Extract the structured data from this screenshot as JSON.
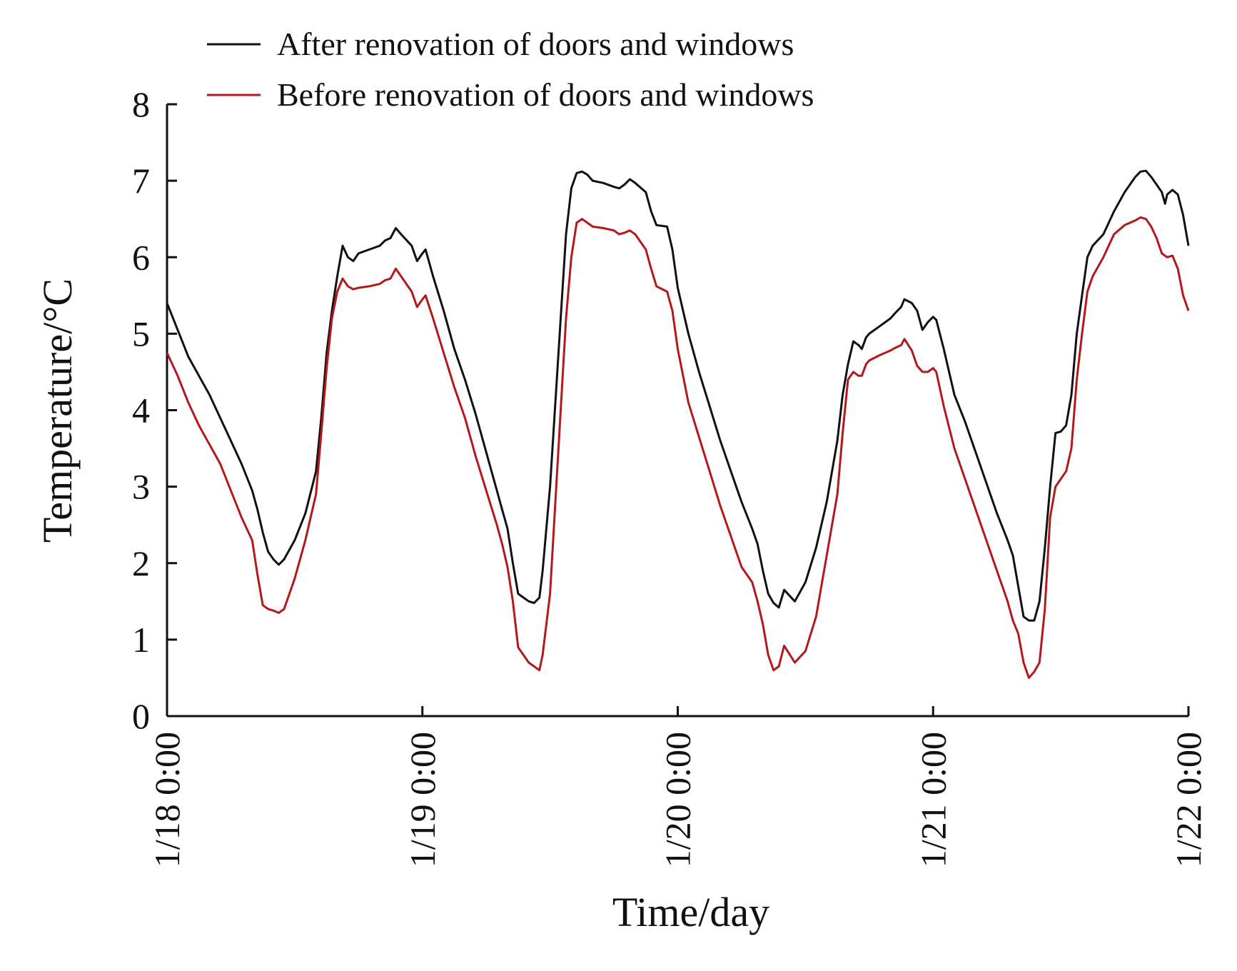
{
  "chart_data": {
    "type": "line",
    "title": "",
    "xlabel": "Time/day",
    "ylabel": "Temperature/°C",
    "ylim": [
      0,
      8
    ],
    "yticks": [
      0,
      1,
      2,
      3,
      4,
      5,
      6,
      7,
      8
    ],
    "ytick_labels": [
      "0",
      "1",
      "2",
      "3",
      "4",
      "5",
      "6",
      "7",
      "8"
    ],
    "xlim": [
      0,
      96
    ],
    "xticks": [
      0,
      24,
      48,
      72,
      96
    ],
    "xtick_labels": [
      "1/18 0:00",
      "1/19 0:00",
      "1/20 0:00",
      "1/21 0:00",
      "1/22 0:00"
    ],
    "x_units": "hours since 1/18 0:00",
    "grid": false,
    "legend_position": "top-left",
    "series": [
      {
        "name": "After renovation of doors and windows",
        "color": "#111111",
        "points": [
          [
            0,
            5.4
          ],
          [
            1,
            5.05
          ],
          [
            2,
            4.7
          ],
          [
            3,
            4.45
          ],
          [
            4,
            4.2
          ],
          [
            5,
            3.9
          ],
          [
            6,
            3.6
          ],
          [
            7,
            3.3
          ],
          [
            8,
            2.95
          ],
          [
            8.5,
            2.7
          ],
          [
            9,
            2.4
          ],
          [
            9.5,
            2.15
          ],
          [
            10,
            2.05
          ],
          [
            10.5,
            1.98
          ],
          [
            11,
            2.05
          ],
          [
            12,
            2.3
          ],
          [
            13,
            2.65
          ],
          [
            14,
            3.2
          ],
          [
            14.5,
            3.9
          ],
          [
            15,
            4.75
          ],
          [
            15.5,
            5.3
          ],
          [
            16,
            5.75
          ],
          [
            16.5,
            6.15
          ],
          [
            17,
            6.0
          ],
          [
            17.5,
            5.95
          ],
          [
            18,
            6.05
          ],
          [
            19,
            6.1
          ],
          [
            20,
            6.15
          ],
          [
            20.5,
            6.22
          ],
          [
            21,
            6.25
          ],
          [
            21.5,
            6.38
          ],
          [
            22,
            6.3
          ],
          [
            23,
            6.15
          ],
          [
            23.5,
            5.95
          ],
          [
            24,
            6.05
          ],
          [
            24.3,
            6.1
          ],
          [
            25,
            5.75
          ],
          [
            26,
            5.3
          ],
          [
            27,
            4.8
          ],
          [
            28,
            4.4
          ],
          [
            29,
            3.95
          ],
          [
            30,
            3.45
          ],
          [
            31,
            2.95
          ],
          [
            31.5,
            2.7
          ],
          [
            32,
            2.45
          ],
          [
            32.5,
            2.0
          ],
          [
            33,
            1.6
          ],
          [
            34,
            1.5
          ],
          [
            34.5,
            1.48
          ],
          [
            35,
            1.55
          ],
          [
            35.3,
            1.9
          ],
          [
            36,
            3.0
          ],
          [
            37,
            5.2
          ],
          [
            37.5,
            6.3
          ],
          [
            38,
            6.9
          ],
          [
            38.5,
            7.1
          ],
          [
            39,
            7.12
          ],
          [
            39.5,
            7.08
          ],
          [
            40,
            7.0
          ],
          [
            41,
            6.97
          ],
          [
            42,
            6.92
          ],
          [
            42.5,
            6.9
          ],
          [
            43,
            6.95
          ],
          [
            43.5,
            7.02
          ],
          [
            44,
            6.97
          ],
          [
            45,
            6.85
          ],
          [
            45.5,
            6.6
          ],
          [
            46,
            6.42
          ],
          [
            47,
            6.4
          ],
          [
            47.5,
            6.1
          ],
          [
            48,
            5.6
          ],
          [
            49,
            5.0
          ],
          [
            50,
            4.5
          ],
          [
            51,
            4.05
          ],
          [
            52,
            3.6
          ],
          [
            53,
            3.2
          ],
          [
            54,
            2.8
          ],
          [
            55,
            2.45
          ],
          [
            55.5,
            2.25
          ],
          [
            56,
            1.9
          ],
          [
            56.5,
            1.6
          ],
          [
            57,
            1.48
          ],
          [
            57.5,
            1.42
          ],
          [
            58,
            1.65
          ],
          [
            59,
            1.5
          ],
          [
            60,
            1.75
          ],
          [
            61,
            2.2
          ],
          [
            62,
            2.8
          ],
          [
            63,
            3.6
          ],
          [
            63.5,
            4.2
          ],
          [
            64,
            4.6
          ],
          [
            64.5,
            4.9
          ],
          [
            65,
            4.85
          ],
          [
            65.3,
            4.8
          ],
          [
            65.7,
            4.95
          ],
          [
            66,
            5.0
          ],
          [
            67,
            5.1
          ],
          [
            68,
            5.2
          ],
          [
            68.5,
            5.28
          ],
          [
            69,
            5.35
          ],
          [
            69.3,
            5.45
          ],
          [
            70,
            5.4
          ],
          [
            70.5,
            5.3
          ],
          [
            71,
            5.05
          ],
          [
            71.5,
            5.15
          ],
          [
            72,
            5.22
          ],
          [
            72.3,
            5.18
          ],
          [
            73,
            4.8
          ],
          [
            74,
            4.2
          ],
          [
            75,
            3.85
          ],
          [
            76,
            3.45
          ],
          [
            77,
            3.05
          ],
          [
            78,
            2.65
          ],
          [
            79,
            2.3
          ],
          [
            79.5,
            2.1
          ],
          [
            80,
            1.7
          ],
          [
            80.5,
            1.3
          ],
          [
            81,
            1.25
          ],
          [
            81.5,
            1.25
          ],
          [
            82,
            1.5
          ],
          [
            82.5,
            2.2
          ],
          [
            83,
            3.0
          ],
          [
            83.5,
            3.7
          ],
          [
            84,
            3.72
          ],
          [
            84.5,
            3.8
          ],
          [
            85,
            4.2
          ],
          [
            85.5,
            5.0
          ],
          [
            86,
            5.5
          ],
          [
            86.5,
            6.0
          ],
          [
            87,
            6.15
          ],
          [
            88,
            6.3
          ],
          [
            89,
            6.6
          ],
          [
            90,
            6.85
          ],
          [
            91,
            7.05
          ],
          [
            91.5,
            7.12
          ],
          [
            92,
            7.13
          ],
          [
            92.5,
            7.05
          ],
          [
            93,
            6.95
          ],
          [
            93.5,
            6.85
          ],
          [
            93.8,
            6.7
          ],
          [
            94,
            6.82
          ],
          [
            94.5,
            6.88
          ],
          [
            95,
            6.82
          ],
          [
            95.5,
            6.55
          ],
          [
            96,
            6.15
          ]
        ]
      },
      {
        "name": "Before renovation of doors and windows",
        "color": "#b3191c",
        "points": [
          [
            0,
            4.75
          ],
          [
            1,
            4.45
          ],
          [
            2,
            4.1
          ],
          [
            3,
            3.8
          ],
          [
            4,
            3.55
          ],
          [
            5,
            3.3
          ],
          [
            6,
            2.95
          ],
          [
            7,
            2.6
          ],
          [
            8,
            2.3
          ],
          [
            8.5,
            1.85
          ],
          [
            9,
            1.45
          ],
          [
            9.5,
            1.4
          ],
          [
            10,
            1.38
          ],
          [
            10.5,
            1.35
          ],
          [
            11,
            1.4
          ],
          [
            12,
            1.8
          ],
          [
            13,
            2.3
          ],
          [
            14,
            2.9
          ],
          [
            14.5,
            3.7
          ],
          [
            15,
            4.55
          ],
          [
            15.5,
            5.2
          ],
          [
            16,
            5.55
          ],
          [
            16.5,
            5.72
          ],
          [
            17,
            5.62
          ],
          [
            17.5,
            5.58
          ],
          [
            18,
            5.6
          ],
          [
            19,
            5.62
          ],
          [
            20,
            5.65
          ],
          [
            20.5,
            5.7
          ],
          [
            21,
            5.72
          ],
          [
            21.5,
            5.85
          ],
          [
            22,
            5.75
          ],
          [
            23,
            5.55
          ],
          [
            23.5,
            5.35
          ],
          [
            24,
            5.45
          ],
          [
            24.3,
            5.5
          ],
          [
            25,
            5.2
          ],
          [
            26,
            4.75
          ],
          [
            27,
            4.3
          ],
          [
            28,
            3.9
          ],
          [
            29,
            3.4
          ],
          [
            30,
            2.95
          ],
          [
            31,
            2.5
          ],
          [
            31.5,
            2.25
          ],
          [
            32,
            1.95
          ],
          [
            32.5,
            1.5
          ],
          [
            33,
            0.9
          ],
          [
            34,
            0.7
          ],
          [
            34.5,
            0.65
          ],
          [
            35,
            0.6
          ],
          [
            35.3,
            0.8
          ],
          [
            36,
            1.6
          ],
          [
            37,
            4.0
          ],
          [
            37.5,
            5.2
          ],
          [
            38,
            6.0
          ],
          [
            38.5,
            6.45
          ],
          [
            39,
            6.5
          ],
          [
            39.5,
            6.45
          ],
          [
            40,
            6.4
          ],
          [
            41,
            6.38
          ],
          [
            42,
            6.35
          ],
          [
            42.5,
            6.3
          ],
          [
            43,
            6.32
          ],
          [
            43.5,
            6.35
          ],
          [
            44,
            6.3
          ],
          [
            45,
            6.1
          ],
          [
            45.5,
            5.85
          ],
          [
            46,
            5.62
          ],
          [
            47,
            5.55
          ],
          [
            47.5,
            5.3
          ],
          [
            48,
            4.8
          ],
          [
            49,
            4.1
          ],
          [
            50,
            3.65
          ],
          [
            51,
            3.2
          ],
          [
            52,
            2.75
          ],
          [
            53,
            2.35
          ],
          [
            54,
            1.95
          ],
          [
            55,
            1.75
          ],
          [
            55.5,
            1.5
          ],
          [
            56,
            1.2
          ],
          [
            56.5,
            0.8
          ],
          [
            57,
            0.6
          ],
          [
            57.5,
            0.65
          ],
          [
            58,
            0.92
          ],
          [
            59,
            0.7
          ],
          [
            60,
            0.85
          ],
          [
            61,
            1.3
          ],
          [
            62,
            2.1
          ],
          [
            63,
            2.9
          ],
          [
            63.5,
            3.7
          ],
          [
            64,
            4.4
          ],
          [
            64.5,
            4.5
          ],
          [
            65,
            4.45
          ],
          [
            65.3,
            4.45
          ],
          [
            65.7,
            4.6
          ],
          [
            66,
            4.65
          ],
          [
            67,
            4.72
          ],
          [
            68,
            4.78
          ],
          [
            68.5,
            4.82
          ],
          [
            69,
            4.85
          ],
          [
            69.3,
            4.93
          ],
          [
            70,
            4.78
          ],
          [
            70.5,
            4.58
          ],
          [
            71,
            4.5
          ],
          [
            71.5,
            4.5
          ],
          [
            72,
            4.55
          ],
          [
            72.3,
            4.5
          ],
          [
            73,
            4.05
          ],
          [
            74,
            3.5
          ],
          [
            75,
            3.1
          ],
          [
            76,
            2.7
          ],
          [
            77,
            2.3
          ],
          [
            78,
            1.9
          ],
          [
            79,
            1.5
          ],
          [
            79.5,
            1.25
          ],
          [
            80,
            1.08
          ],
          [
            80.5,
            0.7
          ],
          [
            81,
            0.5
          ],
          [
            81.5,
            0.58
          ],
          [
            82,
            0.7
          ],
          [
            82.5,
            1.4
          ],
          [
            83,
            2.6
          ],
          [
            83.5,
            3.0
          ],
          [
            84,
            3.1
          ],
          [
            84.5,
            3.2
          ],
          [
            85,
            3.5
          ],
          [
            85.5,
            4.4
          ],
          [
            86,
            5.0
          ],
          [
            86.5,
            5.55
          ],
          [
            87,
            5.75
          ],
          [
            88,
            6.0
          ],
          [
            89,
            6.3
          ],
          [
            90,
            6.42
          ],
          [
            91,
            6.48
          ],
          [
            91.5,
            6.52
          ],
          [
            92,
            6.5
          ],
          [
            92.5,
            6.4
          ],
          [
            93,
            6.25
          ],
          [
            93.5,
            6.05
          ],
          [
            94,
            6.0
          ],
          [
            94.5,
            6.02
          ],
          [
            95,
            5.85
          ],
          [
            95.5,
            5.5
          ],
          [
            96,
            5.3
          ]
        ]
      }
    ]
  }
}
